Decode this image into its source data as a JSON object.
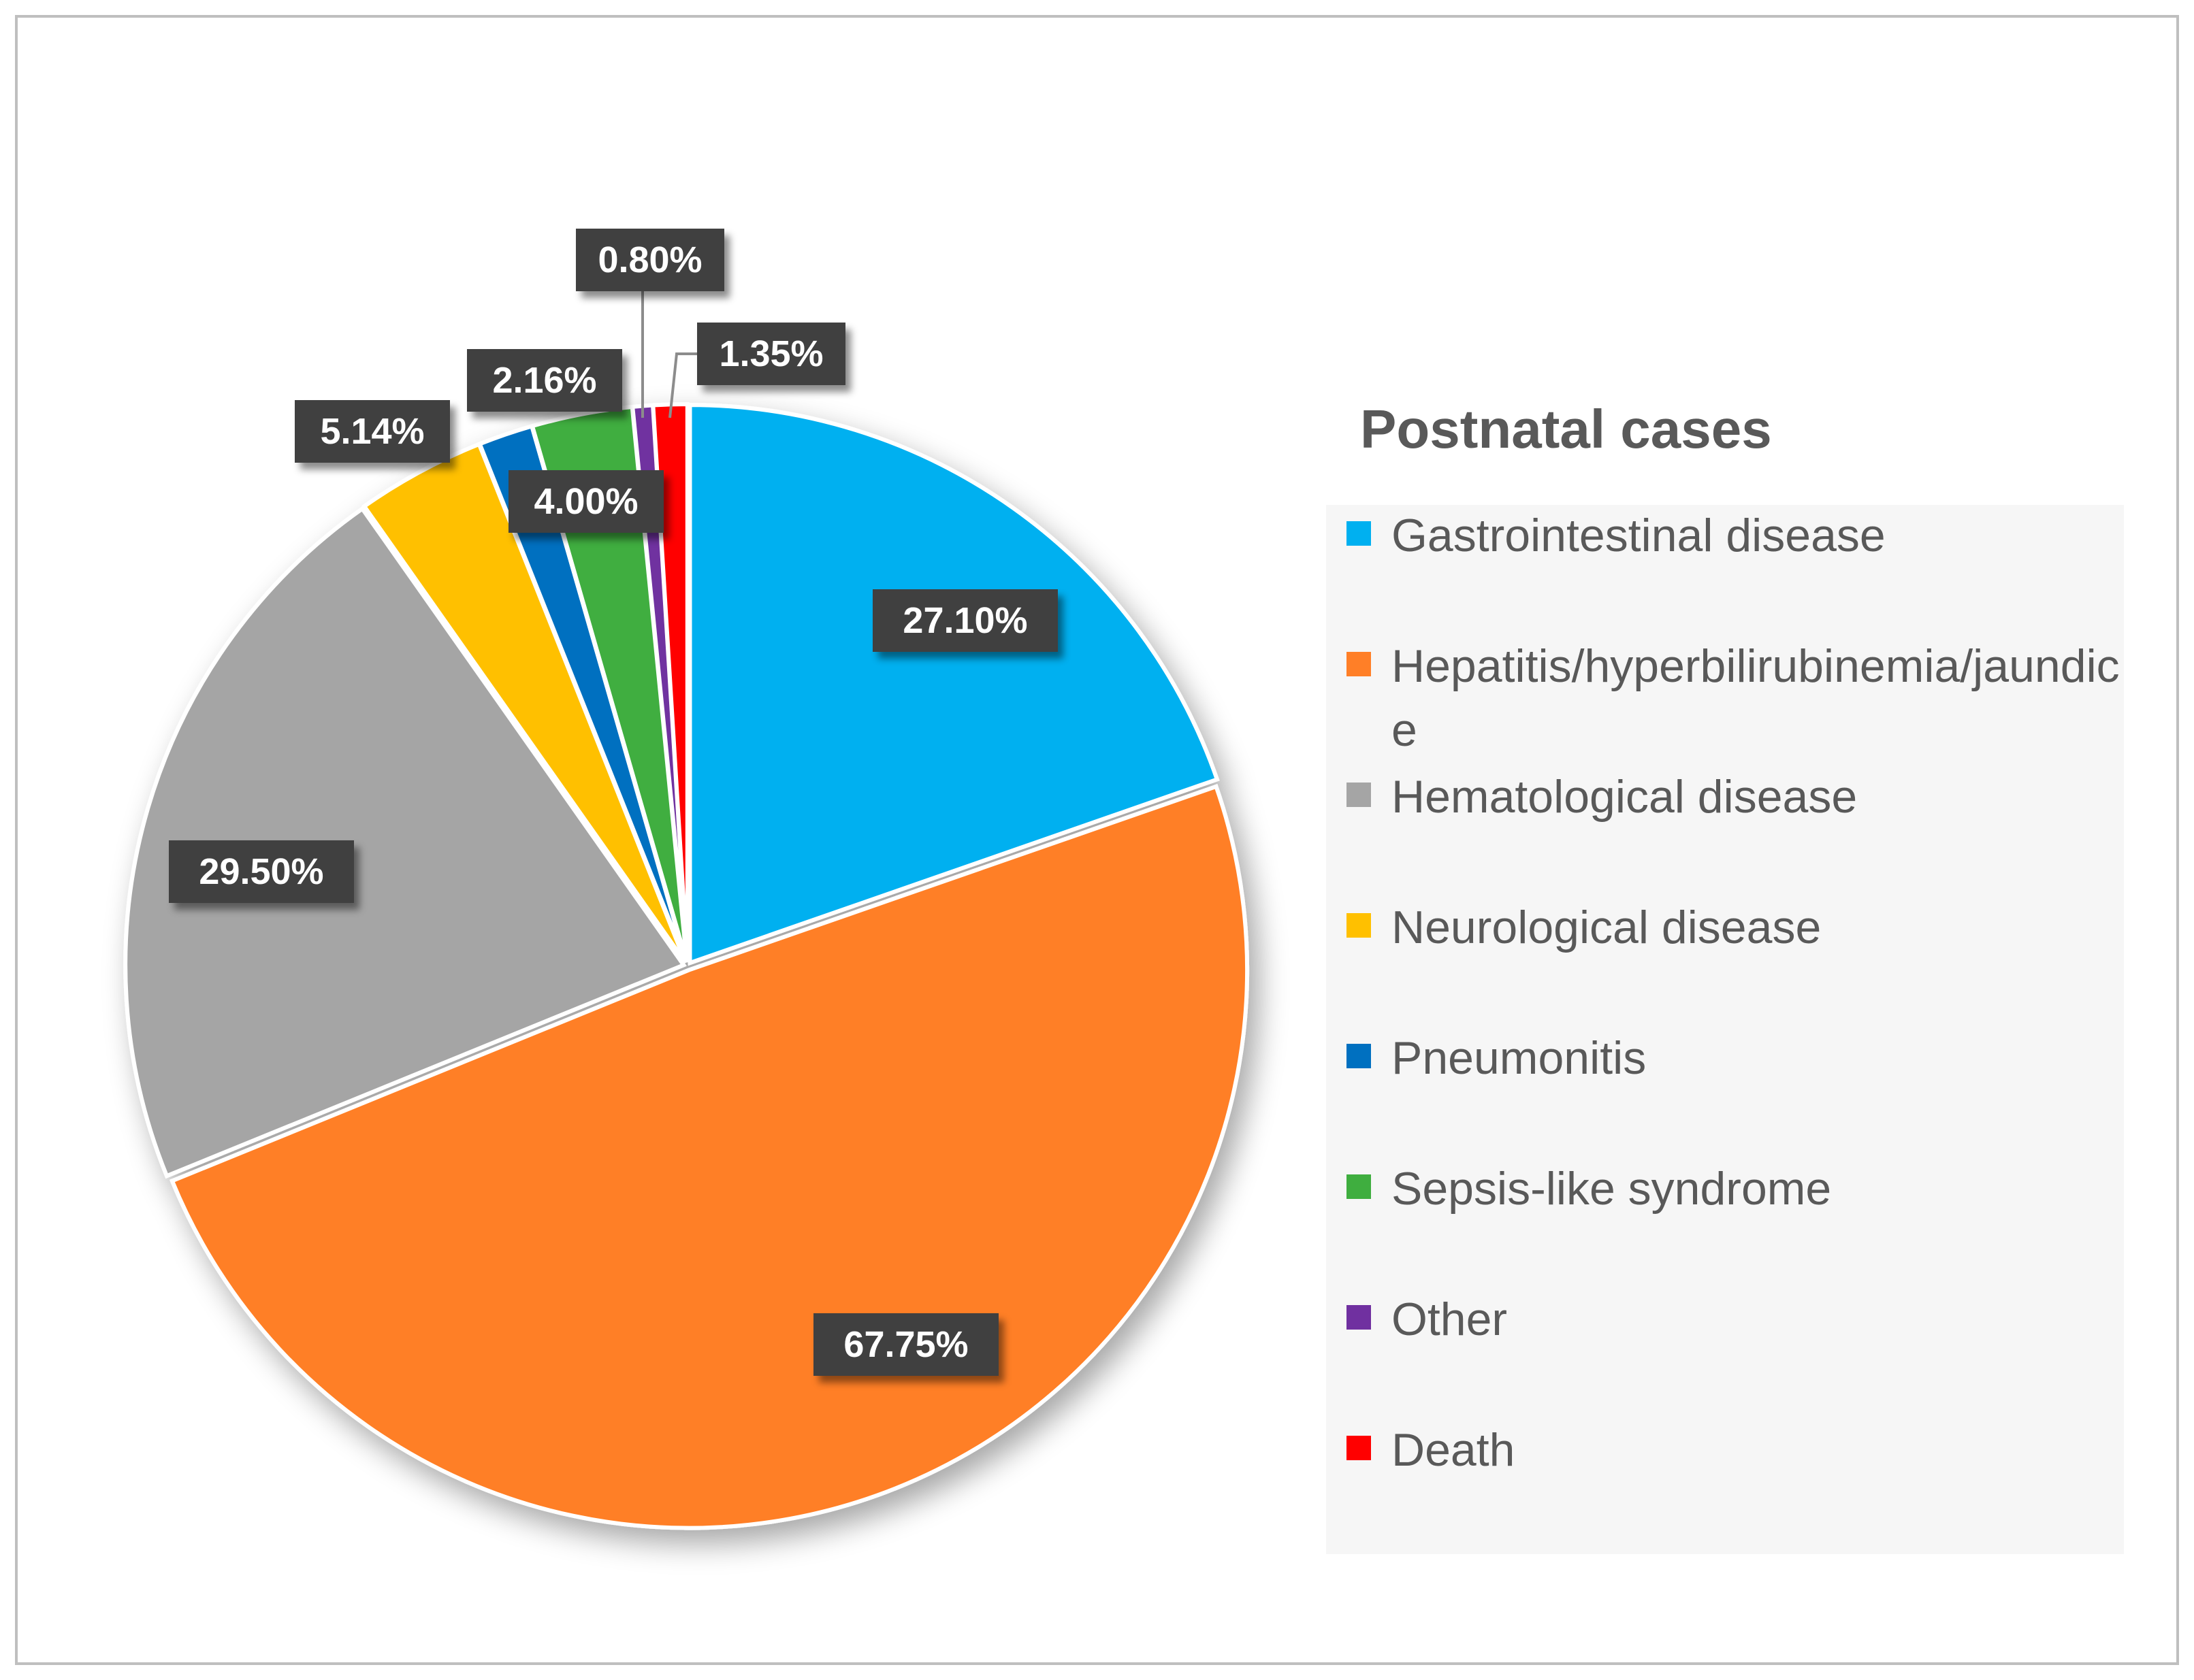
{
  "chart_data": {
    "type": "pie",
    "title": "Postnatal cases",
    "legend_position": "right",
    "categories": [
      "Gastrointestinal disease",
      "Hepatitis/hyperbilirubinemia/jaundice",
      "Hematological disease",
      "Neurological disease",
      "Pneumonitis",
      "Sepsis-like syndrome",
      "Other",
      "Death"
    ],
    "values": [
      27.1,
      67.75,
      29.5,
      5.14,
      2.16,
      4.0,
      0.8,
      1.35
    ],
    "labels": [
      "27.10%",
      "67.75%",
      "29.50%",
      "5.14%",
      "2.16%",
      "4.00%",
      "0.80%",
      "1.35%"
    ],
    "colors": [
      "#00b0f0",
      "#ff7f27",
      "#a5a5a5",
      "#ffc000",
      "#0070c0",
      "#3fae3f",
      "#7030a0",
      "#ff0000"
    ]
  }
}
